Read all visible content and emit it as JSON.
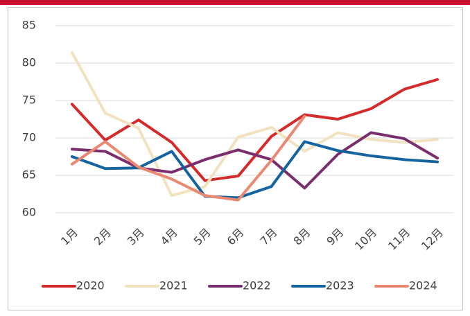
{
  "chart_data": {
    "type": "line",
    "categories": [
      "1月",
      "2月",
      "3月",
      "4月",
      "5月",
      "6月",
      "7月",
      "8月",
      "9月",
      "10月",
      "11月",
      "12月"
    ],
    "series": [
      {
        "name": "2020",
        "color": "#d42a2a",
        "values": [
          74.5,
          69.7,
          72.4,
          69.4,
          64.3,
          64.9,
          70.2,
          73.1,
          72.5,
          73.9,
          76.5,
          77.8
        ]
      },
      {
        "name": "2021",
        "color": "#f2e2c0",
        "values": [
          81.4,
          73.3,
          71.3,
          62.3,
          63.5,
          70.1,
          71.4,
          68.2,
          70.7,
          69.8,
          69.4,
          69.8
        ]
      },
      {
        "name": "2022",
        "color": "#7b2e6e",
        "values": [
          68.5,
          68.2,
          66.0,
          65.4,
          67.1,
          68.4,
          67.1,
          63.3,
          67.8,
          70.7,
          69.9,
          67.3
        ]
      },
      {
        "name": "2023",
        "color": "#1464a0",
        "values": [
          67.5,
          65.9,
          66.0,
          68.2,
          62.2,
          62.0,
          63.5,
          69.5,
          68.3,
          67.6,
          67.1,
          66.8
        ]
      },
      {
        "name": "2024",
        "color": "#eb8872",
        "values": [
          66.5,
          69.5,
          66.1,
          64.5,
          62.3,
          61.7,
          67.0,
          72.9,
          null,
          null,
          null,
          null
        ]
      }
    ],
    "ylim": [
      60,
      85
    ],
    "yticks": [
      60,
      65,
      70,
      75,
      80,
      85
    ],
    "grid": true,
    "legend": "bottom"
  }
}
